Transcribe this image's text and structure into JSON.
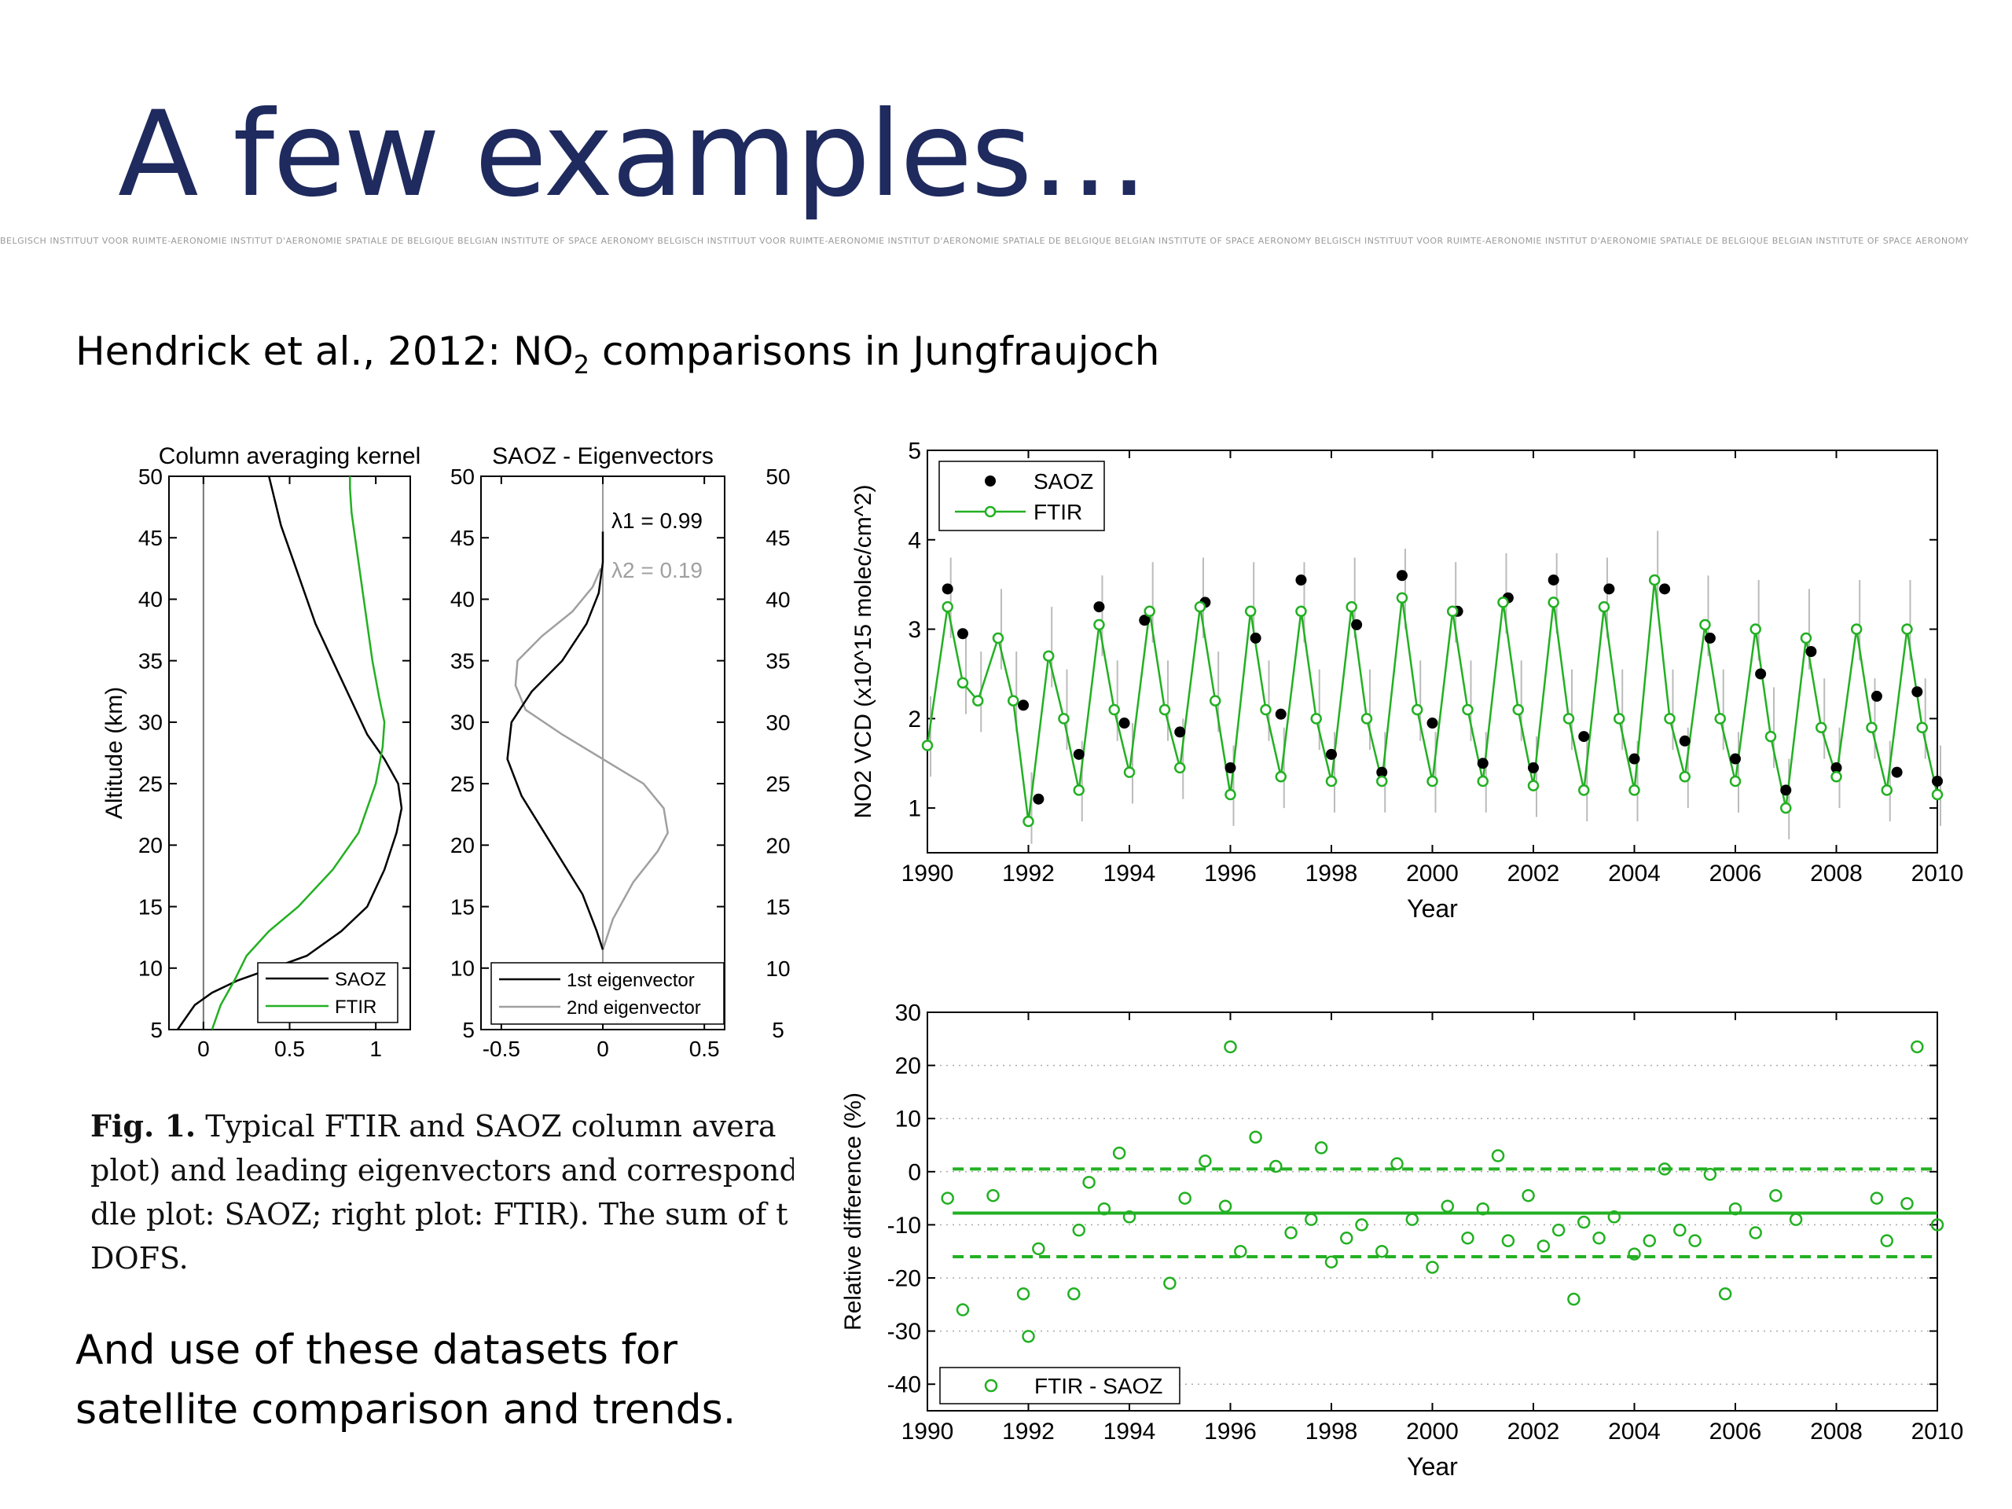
{
  "slide": {
    "title": "A few examples…",
    "banner": "BELGISCH INSTITUUT VOOR RUIMTE-AERONOMIE INSTITUT D'AERONOMIE SPATIALE DE BELGIQUE BELGIAN INSTITUTE OF SPACE AERONOMY BELGISCH INSTITUUT VOOR RUIMTE-AERONOMIE INSTITUT D'AERONOMIE SPATIALE DE BELGIQUE BELGIAN INSTITUTE OF SPACE AERONOMY BELGISCH INSTITUUT VOOR RUIMTE-AERONOMIE INSTITUT D'AERONOMIE SPATIALE DE BELGIQUE BELGIAN INSTITUTE OF SPACE AERONOMY",
    "subtitle_pre": "Hendrick et al., 2012: NO",
    "subtitle_sub": "2",
    "subtitle_post": " comparisons in Jungfraujoch",
    "bottom_line1": "And use of these datasets for",
    "bottom_line2": "satellite comparison and trends.",
    "caption": {
      "fig_label": "Fig. 1.",
      "line1": " Typical FTIR and SAOZ column avera",
      "line2": "plot) and leading eigenvectors and corresponding",
      "line3": "dle plot: SAOZ; right plot: FTIR). The sum of t",
      "line4": "DOFS."
    }
  },
  "colors": {
    "title": "#1f2a5e",
    "ftir": "#22b022",
    "saoz": "#000000",
    "eig2": "#a0a0a0"
  },
  "chart_data": [
    {
      "type": "line",
      "title": "Column averaging kernel",
      "ylabel": "Altitude (km)",
      "xlim": [
        -0.2,
        1.2
      ],
      "ylim": [
        5,
        50
      ],
      "xticks": [
        0,
        0.5,
        1
      ],
      "xticklabels": [
        "0",
        "0.5",
        "1"
      ],
      "yticks": [
        5,
        10,
        15,
        20,
        25,
        30,
        35,
        40,
        45,
        50
      ],
      "legend": "bottom-right",
      "series": [
        {
          "name": "SAOZ",
          "x": [
            -0.15,
            -0.1,
            -0.05,
            0.05,
            0.2,
            0.4,
            0.6,
            0.8,
            0.95,
            1.05,
            1.12,
            1.15,
            1.13,
            1.05,
            0.95,
            0.85,
            0.75,
            0.65,
            0.55,
            0.45,
            0.38
          ],
          "y": [
            5,
            6,
            7,
            8,
            9,
            10,
            11,
            13,
            15,
            18,
            21,
            23,
            25,
            27,
            29,
            32,
            35,
            38,
            42,
            46,
            50
          ]
        },
        {
          "name": "FTIR",
          "x": [
            0.05,
            0.1,
            0.18,
            0.25,
            0.38,
            0.55,
            0.75,
            0.9,
            1.0,
            1.04,
            1.05,
            1.02,
            0.98,
            0.95,
            0.92,
            0.9,
            0.88,
            0.86,
            0.85,
            0.85
          ],
          "y": [
            5,
            7,
            9,
            11,
            13,
            15,
            18,
            21,
            25,
            28,
            30,
            32,
            35,
            38,
            41,
            43,
            45,
            47,
            49,
            50
          ]
        }
      ]
    },
    {
      "type": "line",
      "title": "SAOZ - Eigenvectors",
      "xlim": [
        -0.6,
        0.6
      ],
      "ylim": [
        5,
        50
      ],
      "xticks": [
        -0.5,
        0,
        0.5
      ],
      "xticklabels": [
        "-0.5",
        "0",
        "0.5"
      ],
      "yticks": [
        5,
        10,
        15,
        20,
        25,
        30,
        35,
        40,
        45,
        50
      ],
      "annotations": [
        {
          "text": "λ1 = 0.99"
        },
        {
          "text": "λ2 = 0.19"
        }
      ],
      "legend": "bottom",
      "series": [
        {
          "name": "1st eigenvector",
          "x": [
            0,
            -0.03,
            -0.1,
            -0.25,
            -0.4,
            -0.47,
            -0.45,
            -0.35,
            -0.2,
            -0.08,
            -0.02,
            0,
            0
          ],
          "y": [
            11.5,
            13,
            16,
            20,
            24,
            27,
            30,
            32.5,
            35,
            38,
            40.5,
            43,
            45.5
          ]
        },
        {
          "name": "2nd eigenvector",
          "x": [
            0,
            0.05,
            0.15,
            0.27,
            0.32,
            0.3,
            0.2,
            0.0,
            -0.2,
            -0.38,
            -0.43,
            -0.42,
            -0.3,
            -0.15,
            -0.05,
            -0.01
          ],
          "y": [
            11.5,
            14,
            17,
            19.5,
            21,
            23,
            25,
            27,
            29,
            31,
            33,
            35,
            37,
            39,
            41,
            42.5
          ]
        }
      ],
      "right_axis_labels": [
        "50",
        "45",
        "40",
        "35",
        "30",
        "25",
        "20",
        "15",
        "10",
        "5"
      ]
    },
    {
      "type": "scatter",
      "xlabel": "Year",
      "ylabel": "NO2 VCD (x10^15 molec/cm^2)",
      "xlim": [
        1990,
        2010
      ],
      "ylim": [
        0.5,
        5
      ],
      "xticks": [
        1990,
        1992,
        1994,
        1996,
        1998,
        2000,
        2002,
        2004,
        2006,
        2008,
        2010
      ],
      "yticks": [
        1,
        2,
        3,
        4,
        5
      ],
      "legend": "top-left",
      "series": [
        {
          "name": "SAOZ",
          "marker": "filled-circle",
          "x": [
            1990.4,
            1990.7,
            1991.9,
            1992.2,
            1993.0,
            1993.4,
            1993.9,
            1994.3,
            1995.0,
            1995.5,
            1996.0,
            1996.5,
            1997.0,
            1997.4,
            1998.0,
            1998.5,
            1999.0,
            1999.4,
            2000.0,
            2000.5,
            2001.0,
            2001.5,
            2002.0,
            2002.4,
            2003.0,
            2003.5,
            2004.0,
            2004.6,
            2005.0,
            2005.5,
            2006.0,
            2006.5,
            2007.0,
            2007.5,
            2008.0,
            2008.8,
            2009.2,
            2009.6,
            2010.0
          ],
          "y": [
            3.45,
            2.95,
            2.15,
            1.1,
            1.6,
            3.25,
            1.95,
            3.1,
            1.85,
            3.3,
            1.45,
            2.9,
            2.05,
            3.55,
            1.6,
            3.05,
            1.4,
            3.6,
            1.95,
            3.2,
            1.5,
            3.35,
            1.45,
            3.55,
            1.8,
            3.45,
            1.55,
            3.45,
            1.75,
            2.9,
            1.55,
            2.5,
            1.2,
            2.75,
            1.45,
            2.25,
            1.4,
            2.3,
            1.3
          ]
        },
        {
          "name": "FTIR",
          "marker": "open-circle-line",
          "x": [
            1990.0,
            1990.4,
            1990.7,
            1991.0,
            1991.4,
            1991.7,
            1992.0,
            1992.4,
            1992.7,
            1993.0,
            1993.4,
            1993.7,
            1994.0,
            1994.4,
            1994.7,
            1995.0,
            1995.4,
            1995.7,
            1996.0,
            1996.4,
            1996.7,
            1997.0,
            1997.4,
            1997.7,
            1998.0,
            1998.4,
            1998.7,
            1999.0,
            1999.4,
            1999.7,
            2000.0,
            2000.4,
            2000.7,
            2001.0,
            2001.4,
            2001.7,
            2002.0,
            2002.4,
            2002.7,
            2003.0,
            2003.4,
            2003.7,
            2004.0,
            2004.4,
            2004.7,
            2005.0,
            2005.4,
            2005.7,
            2006.0,
            2006.4,
            2006.7,
            2007.0,
            2007.4,
            2007.7,
            2008.0,
            2008.4,
            2008.7,
            2009.0,
            2009.4,
            2009.7,
            2010.0
          ],
          "y": [
            1.7,
            3.25,
            2.4,
            2.2,
            2.9,
            2.2,
            0.85,
            2.7,
            2.0,
            1.2,
            3.05,
            2.1,
            1.4,
            3.2,
            2.1,
            1.45,
            3.25,
            2.2,
            1.15,
            3.2,
            2.1,
            1.35,
            3.2,
            2.0,
            1.3,
            3.25,
            2.0,
            1.3,
            3.35,
            2.1,
            1.3,
            3.2,
            2.1,
            1.3,
            3.3,
            2.1,
            1.25,
            3.3,
            2.0,
            1.2,
            3.25,
            2.0,
            1.2,
            3.55,
            2.0,
            1.35,
            3.05,
            2.0,
            1.3,
            3.0,
            1.8,
            1.0,
            2.9,
            1.9,
            1.35,
            3.0,
            1.9,
            1.2,
            3.0,
            1.9,
            1.15
          ]
        }
      ]
    },
    {
      "type": "scatter",
      "xlabel": "Year",
      "ylabel": "Relative difference (%)",
      "xlim": [
        1990,
        2010
      ],
      "ylim": [
        -45,
        30
      ],
      "xticks": [
        1990,
        1992,
        1994,
        1996,
        1998,
        2000,
        2002,
        2004,
        2006,
        2008,
        2010
      ],
      "yticks": [
        -40,
        -30,
        -20,
        -10,
        0,
        10,
        20,
        30
      ],
      "grid": "horizontal-dotted",
      "legend": "bottom-left",
      "hlines": [
        {
          "y": -7.8,
          "style": "solid"
        },
        {
          "y": 0.5,
          "style": "dashed"
        },
        {
          "y": -16,
          "style": "dashed"
        }
      ],
      "series": [
        {
          "name": "FTIR - SAOZ",
          "marker": "open-circle",
          "x": [
            1990.4,
            1990.7,
            1991.3,
            1991.9,
            1992.0,
            1992.2,
            1992.9,
            1993.0,
            1993.2,
            1993.5,
            1993.8,
            1994.0,
            1994.8,
            1995.1,
            1995.5,
            1995.9,
            1996.0,
            1996.2,
            1996.5,
            1996.9,
            1997.2,
            1997.6,
            1997.8,
            1998.0,
            1998.3,
            1998.6,
            1999.0,
            1999.3,
            1999.6,
            2000.0,
            2000.3,
            2000.7,
            2001.0,
            2001.3,
            2001.5,
            2001.9,
            2002.2,
            2002.5,
            2002.8,
            2003.0,
            2003.3,
            2003.6,
            2004.0,
            2004.3,
            2004.6,
            2004.9,
            2005.2,
            2005.5,
            2005.8,
            2006.0,
            2006.4,
            2006.8,
            2007.2,
            2008.8,
            2009.0,
            2009.4,
            2009.6,
            2010.0
          ],
          "y": [
            -5,
            -26,
            -4.5,
            -23,
            -31,
            -14.5,
            -23,
            -11,
            -2,
            -7,
            3.5,
            -8.5,
            -21,
            -5,
            2,
            -6.5,
            23.5,
            -15,
            6.5,
            1,
            -11.5,
            -9,
            4.5,
            -17,
            -12.5,
            -10,
            -15,
            1.5,
            -9,
            -18,
            -6.5,
            -12.5,
            -7,
            3,
            -13,
            -4.5,
            -14,
            -11,
            -24,
            -9.5,
            -12.5,
            -8.5,
            -15.5,
            -13,
            0.5,
            -11,
            -13,
            -0.5,
            -23,
            -7,
            -11.5,
            -4.5,
            -9,
            -5,
            -13,
            -6,
            23.5,
            -10
          ]
        }
      ]
    }
  ]
}
